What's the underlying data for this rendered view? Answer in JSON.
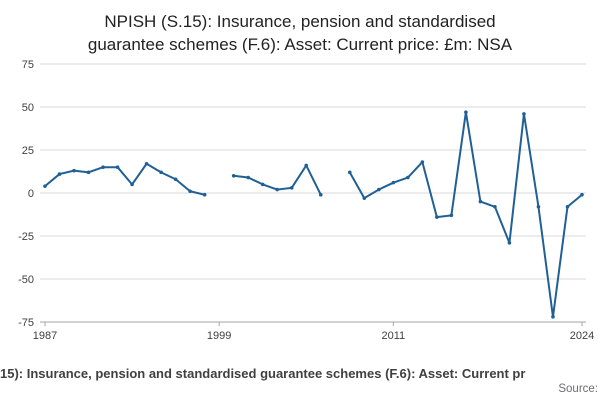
{
  "header": {
    "title_line1": "NPISH (S.15): Insurance, pension and standardised",
    "title_line2": "guarantee schemes (F.6): Asset: Current price: £m: NSA"
  },
  "footer": {
    "caption": "15): Insurance, pension and standardised guarantee schemes (F.6): Asset: Current pr",
    "source_label": "Source:"
  },
  "chart_data": {
    "type": "line",
    "title": "NPISH (S.15): Insurance, pension and standardised guarantee schemes (F.6): Asset: Current price: £m: NSA",
    "xlabel": "",
    "ylabel": "",
    "x": [
      1987,
      1988,
      1989,
      1990,
      1991,
      1992,
      1993,
      1994,
      1995,
      1996,
      1997,
      1998,
      1999,
      2000,
      2001,
      2002,
      2003,
      2004,
      2005,
      2006,
      2007,
      2008,
      2009,
      2010,
      2011,
      2012,
      2013,
      2014,
      2015,
      2016,
      2017,
      2018,
      2019,
      2020,
      2021,
      2022,
      2023,
      2024
    ],
    "values": [
      4,
      11,
      13,
      12,
      15,
      15,
      5,
      17,
      12,
      8,
      1,
      -1,
      null,
      10,
      9,
      5,
      2,
      3,
      16,
      -1,
      null,
      12,
      -3,
      2,
      6,
      9,
      18,
      -14,
      -13,
      47,
      -5,
      -8,
      -29,
      46,
      -8,
      -72,
      -8,
      -1
    ],
    "ylim": [
      -75,
      75
    ],
    "yticks": [
      75,
      50,
      25,
      0,
      -25,
      -50,
      -75
    ],
    "xticks": [
      1987,
      1999,
      2011,
      2024
    ],
    "grid": true,
    "legend": "none",
    "line_color": "#206095",
    "grid_color": "#d9d9d9",
    "axis_color": "#a6a6a6",
    "tick_label_color": "#414042"
  }
}
